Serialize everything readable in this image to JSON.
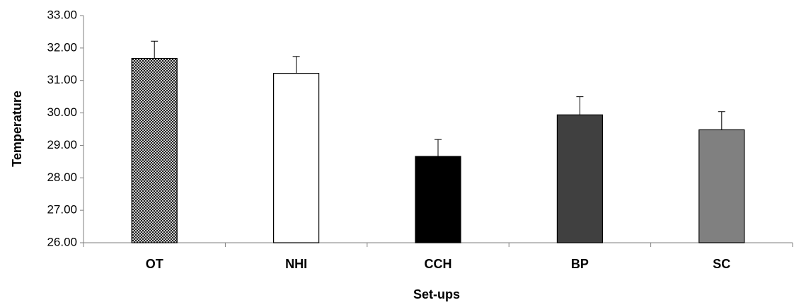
{
  "chart_data": {
    "type": "bar",
    "title": "",
    "xlabel": "Set-ups",
    "ylabel": "Temperature",
    "categories": [
      "OT",
      "NHI",
      "CCH",
      "BP",
      "SC"
    ],
    "values": [
      31.68,
      31.22,
      28.66,
      29.94,
      29.48
    ],
    "errors": [
      0.53,
      0.52,
      0.52,
      0.56,
      0.56
    ],
    "ylim": [
      26.0,
      33.0
    ],
    "yticks": [
      "26.00",
      "27.00",
      "28.00",
      "29.00",
      "30.00",
      "31.00",
      "32.00",
      "33.00"
    ],
    "grid": false,
    "legend": "none",
    "bar_fills": [
      "crosshatch",
      "#ffffff",
      "#000000",
      "#404040",
      "#808080"
    ],
    "bar_stroke": "#000000"
  }
}
